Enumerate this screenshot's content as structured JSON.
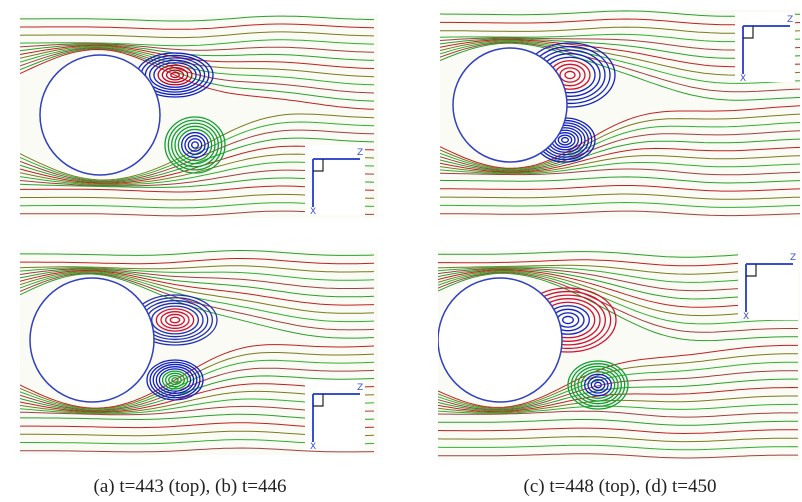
{
  "figure": {
    "panels": [
      {
        "axis_z": "Z",
        "axis_x": "X"
      },
      {
        "axis_z": "Z",
        "axis_x": "X"
      },
      {
        "axis_z": "Z",
        "axis_x": "X"
      },
      {
        "axis_z": "Z",
        "axis_x": "X"
      }
    ],
    "captions": [
      "(a) t=443 (top), (b) t=446",
      "(c) t=448 (top), (d) t=450"
    ]
  }
}
